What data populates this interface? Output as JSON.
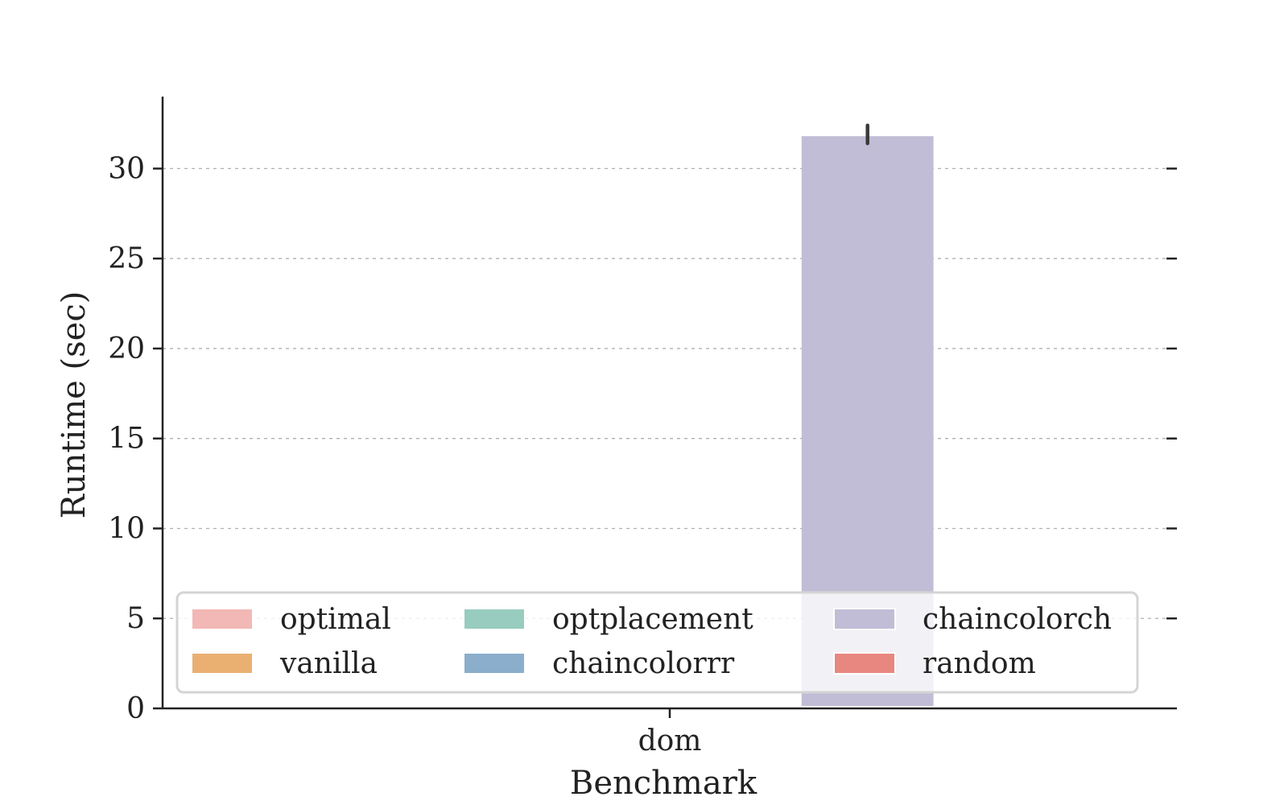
{
  "chart_data": {
    "type": "bar",
    "categories": [
      "dom"
    ],
    "xlabel": "Benchmark",
    "ylabel": "Runtime (sec)",
    "ylim": [
      0,
      34
    ],
    "yticks": [
      0,
      5,
      10,
      15,
      20,
      25,
      30
    ],
    "grid": "horizontal dashed",
    "legend_placement": "lower center",
    "series": [
      {
        "name": "optimal",
        "color": "#f2b8b5",
        "values": [
          0
        ]
      },
      {
        "name": "vanilla",
        "color": "#e9b072",
        "values": [
          0
        ]
      },
      {
        "name": "optplacement",
        "color": "#97ccbe",
        "values": [
          0
        ]
      },
      {
        "name": "chaincolorrr",
        "color": "#8aaecb",
        "values": [
          0
        ]
      },
      {
        "name": "chaincolorch",
        "color": "#c1bdd6",
        "values": [
          31.8
        ],
        "error": [
          31.4,
          32.4
        ]
      },
      {
        "name": "random",
        "color": "#e8877f",
        "values": [
          0
        ]
      }
    ],
    "legend_order": [
      "optimal",
      "vanilla",
      "optplacement",
      "chaincolorrr",
      "chaincolorch",
      "random"
    ]
  }
}
